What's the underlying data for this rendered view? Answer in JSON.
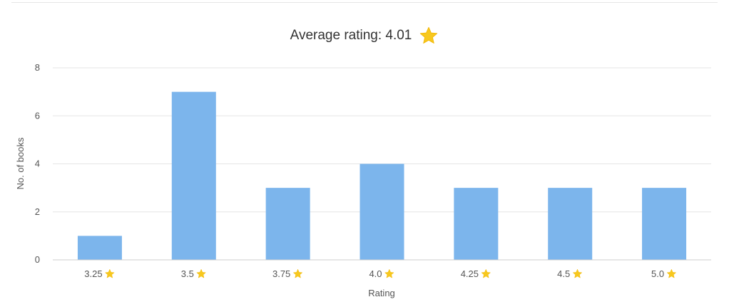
{
  "chart_data": {
    "type": "bar",
    "title": "Average rating: 4.01",
    "title_icon": "star-icon",
    "categories": [
      "3.25",
      "3.5",
      "3.75",
      "4.0",
      "4.25",
      "4.5",
      "5.0"
    ],
    "category_icon": "star-icon",
    "values": [
      1,
      7,
      3,
      4,
      3,
      3,
      3
    ],
    "xlabel": "Rating",
    "ylabel": "No. of books",
    "ylim": [
      0,
      8
    ],
    "yticks": [
      "0",
      "2",
      "4",
      "6",
      "8"
    ],
    "grid": true,
    "legend": false
  },
  "colors": {
    "bar": "#7cb5ec",
    "star": "#f7c81e",
    "grid": "#e6e6e6",
    "axis": "#cccccc"
  }
}
